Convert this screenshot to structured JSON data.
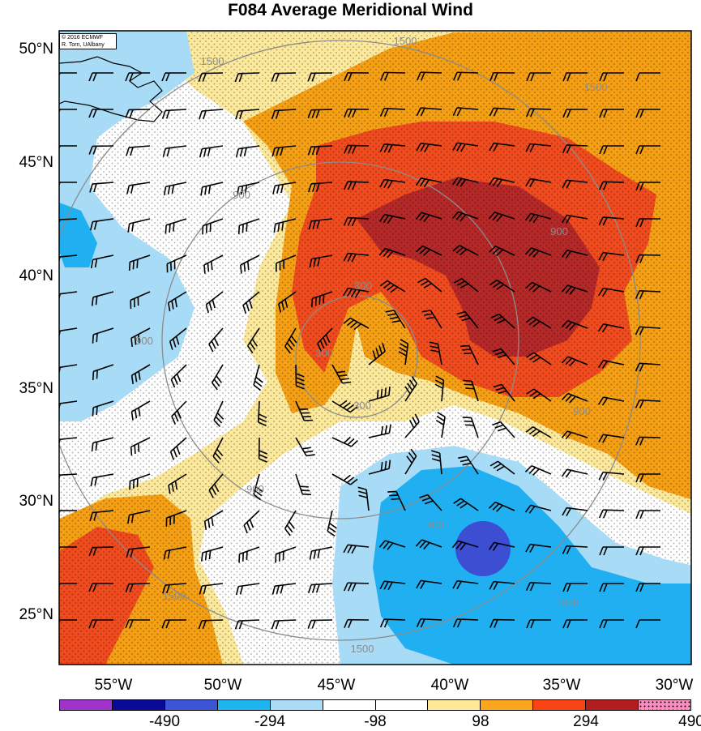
{
  "title": "F084 Average Meridional Wind",
  "credit": {
    "line1": "© 2016 ECMWF",
    "line2": "R. Torn, UAlbany"
  },
  "map": {
    "lon_ticks": [
      "55°W",
      "50°W",
      "45°W",
      "40°W",
      "35°W",
      "30°W"
    ],
    "lat_ticks": [
      "50°N",
      "45°N",
      "40°N",
      "35°N",
      "30°N",
      "25°N"
    ],
    "contour_labels": [
      "1500",
      "1500",
      "1500",
      "900",
      "900",
      "900",
      "900",
      "900",
      "900",
      "300",
      "300",
      "300",
      "1500",
      "1500",
      "1500"
    ]
  },
  "colorbar": {
    "colors": [
      "#a033cc",
      "#0a0a96",
      "#3c55d7",
      "#1eb4f0",
      "#aadcf7",
      "#ffffff",
      "#ffffff",
      "#fde996",
      "#fca51e",
      "#fa4414",
      "#b41e1e",
      "#fa8cbe"
    ],
    "labels": [
      "-490",
      "-294",
      "-98",
      "98",
      "294",
      "490"
    ]
  },
  "colors": {
    "red_dark": "#b42828",
    "red": "#f04b1e",
    "orange": "#f5a014",
    "yellow": "#fde99b",
    "blue_light": "#a7dbf6",
    "blue": "#20aff0",
    "blue_dark": "#3c4ed2",
    "contour": "#8c8c8c"
  }
}
